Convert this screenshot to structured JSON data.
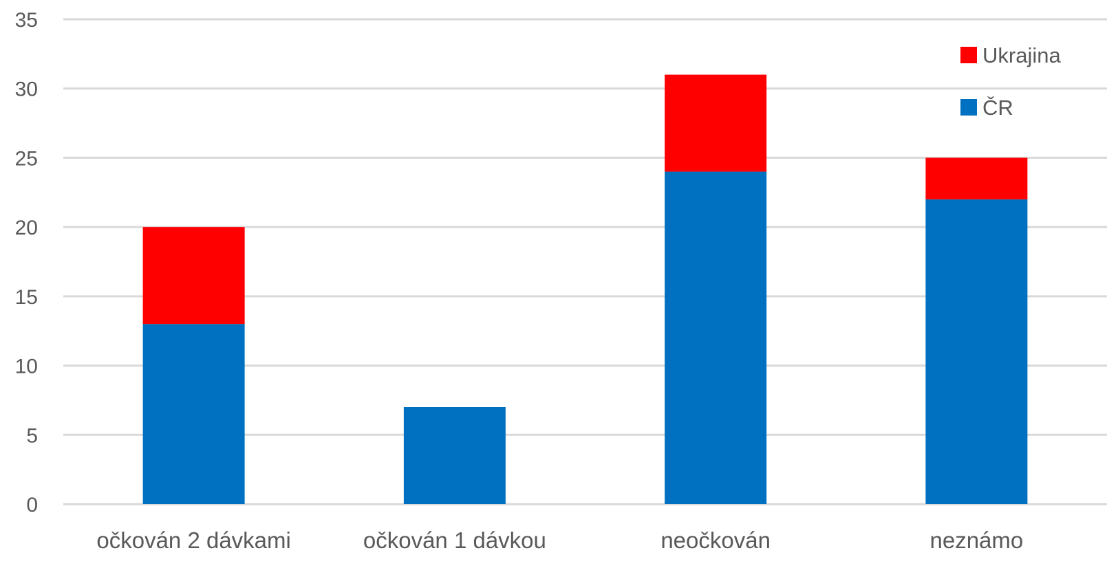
{
  "chart_data": {
    "type": "bar",
    "stacked": true,
    "categories": [
      "očkován 2 dávkami",
      "očkován 1 dávkou",
      "neočkován",
      "neznámo"
    ],
    "series": [
      {
        "name": "ČR",
        "values": [
          13,
          7,
          24,
          22
        ],
        "color": "#0070C0"
      },
      {
        "name": "Ukrajina",
        "values": [
          7,
          0,
          7,
          3
        ],
        "color": "#FF0000"
      }
    ],
    "y_ticks": [
      "0",
      "5",
      "10",
      "15",
      "20",
      "25",
      "30",
      "35"
    ],
    "ylim": [
      0,
      35
    ],
    "grid": true,
    "legend_position": "top-right",
    "legend_order": [
      "Ukrajina",
      "ČR"
    ]
  }
}
